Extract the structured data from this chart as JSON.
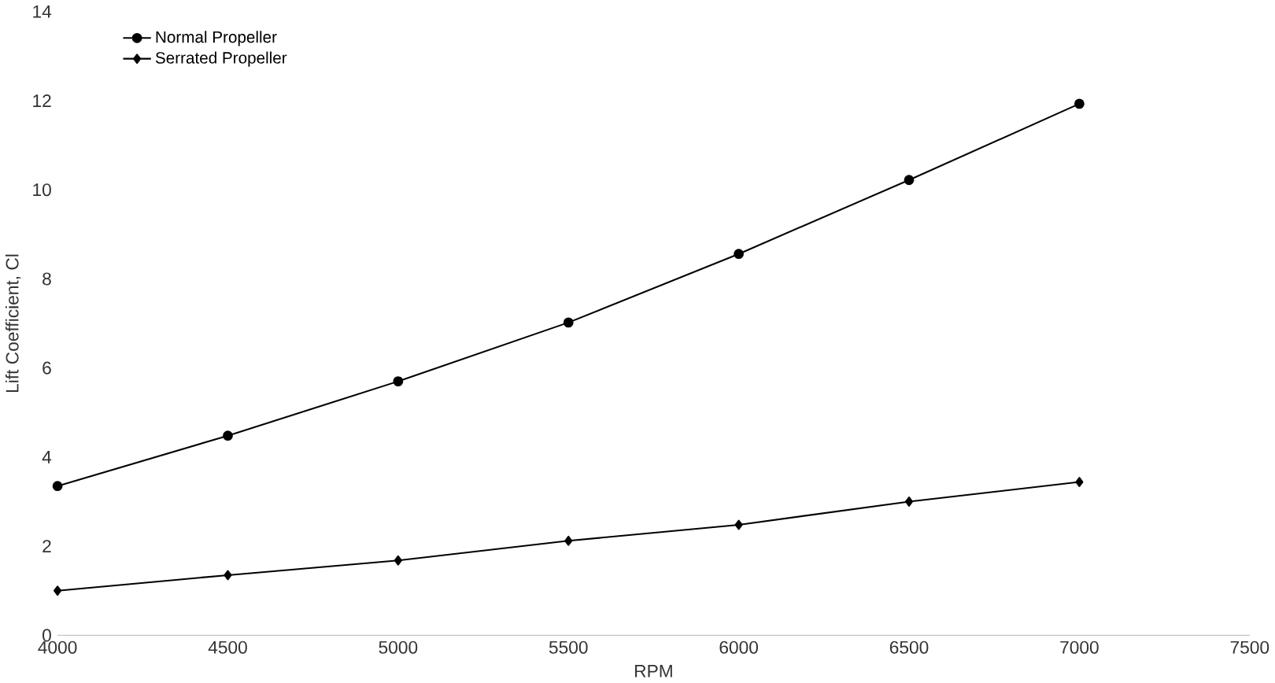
{
  "chart_data": {
    "type": "line",
    "xlabel": "RPM",
    "ylabel": "Lift Coefficient, Cl",
    "x": [
      4000,
      4500,
      5000,
      5500,
      6000,
      6500,
      7000
    ],
    "series": [
      {
        "name": "Normal Propeller",
        "color": "#000000",
        "marker": "circle",
        "values": [
          3.35,
          4.48,
          5.7,
          7.02,
          8.56,
          10.22,
          11.93
        ]
      },
      {
        "name": "Serrated Propeller",
        "color": "#000000",
        "marker": "diamond",
        "values": [
          1.0,
          1.35,
          1.68,
          2.12,
          2.48,
          3.0,
          3.44
        ]
      }
    ],
    "xlim": [
      4000,
      7500
    ],
    "xticks": [
      4000,
      4500,
      5000,
      5500,
      6000,
      6500,
      7000,
      7500
    ],
    "ylim": [
      0,
      14
    ],
    "yticks": [
      0,
      2,
      4,
      6,
      8,
      10,
      12,
      14
    ],
    "grid": false,
    "legend": "top left",
    "line_style": "solid"
  }
}
